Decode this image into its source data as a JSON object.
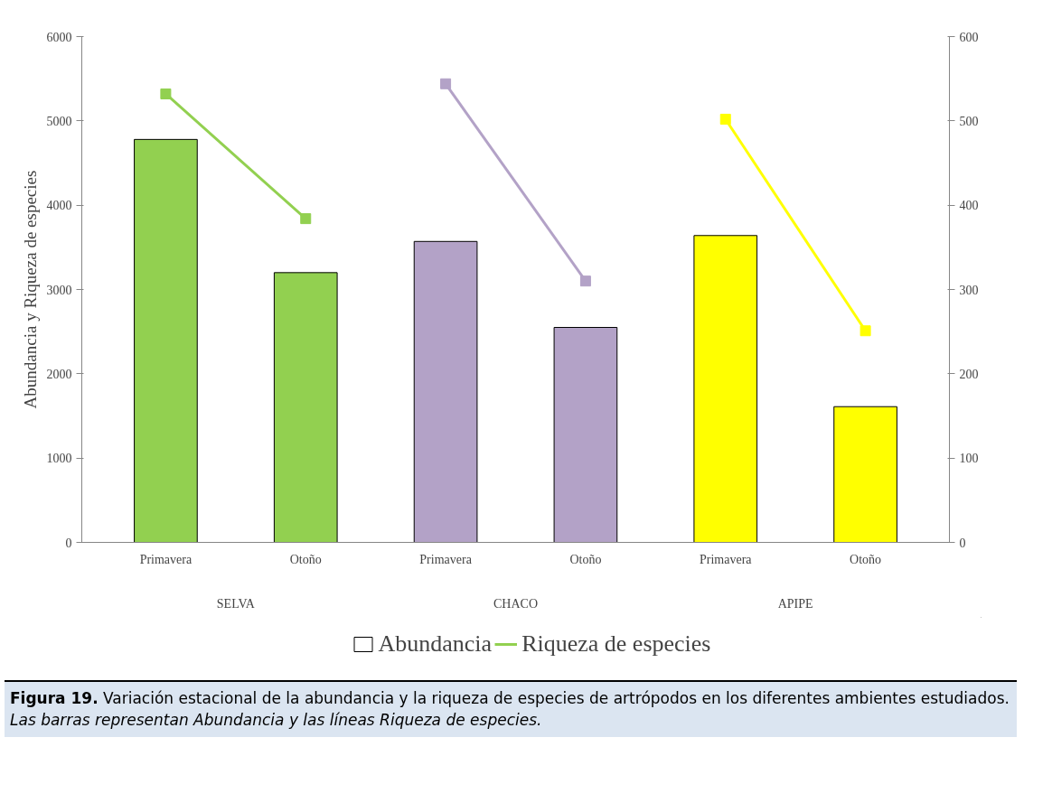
{
  "chart_data": {
    "type": "bar",
    "ylabel": "Abundancia y Riqueza de especies",
    "categories": [
      "Primavera",
      "Otoño",
      "Primavera",
      "Otoño",
      "Primavera",
      "Otoño"
    ],
    "series": [
      {
        "name": "Abundancia",
        "colors": [
          "#92d050",
          "#92d050",
          "#b3a2c7",
          "#b3a2c7",
          "#ffff00",
          "#ffff00"
        ],
        "values": [
          4780,
          3200,
          3570,
          2550,
          3640,
          1610
        ]
      },
      {
        "name": "Riqueza de especies",
        "type": "line",
        "axis": "y2",
        "color": "#92d050",
        "values": [
          532,
          384,
          null,
          null,
          null,
          null
        ]
      },
      {
        "type": "line",
        "axis": "y2",
        "color": "#b3a2c7",
        "values": [
          null,
          null,
          544,
          310,
          null,
          null
        ]
      },
      {
        "type": "line",
        "axis": "y2",
        "color": "#ffff00",
        "values": [
          null,
          null,
          null,
          null,
          502,
          251
        ]
      }
    ],
    "ylim": [
      0,
      6000
    ],
    "yticks": [
      0,
      1000,
      2000,
      3000,
      4000,
      5000,
      6000
    ],
    "y2lim": [
      0,
      600
    ],
    "y2ticks": [
      0,
      100,
      200,
      300,
      400,
      500,
      600
    ],
    "marker": "square",
    "grid": false,
    "legend": "bottom",
    "annotations": [
      "SELVA",
      "CHACO",
      "APIPE",
      "Figura 19.",
      "Variación estacional de la abundancia y la riqueza de especies de artrópodos en los diferentes ambientes estudiados.",
      "Las barras representan Abundancia y las líneas Riqueza de especies."
    ]
  }
}
